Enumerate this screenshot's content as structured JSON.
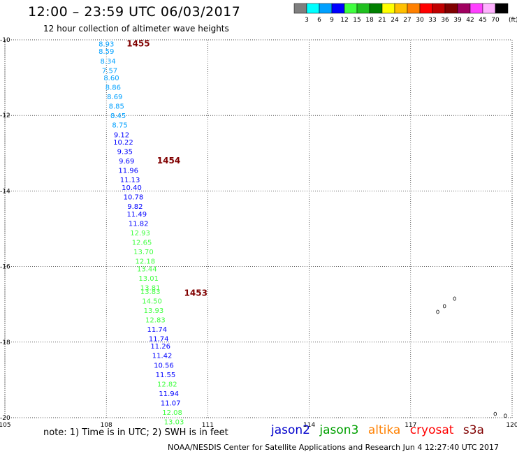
{
  "header": {
    "title": "12:00 – 23:59 UTC 06/03/2017",
    "subtitle": "12 hour collection of altimeter wave heights"
  },
  "colorbar": {
    "unit": "(ft)",
    "labels": [
      "3",
      "6",
      "9",
      "12",
      "15",
      "18",
      "21",
      "24",
      "27",
      "30",
      "33",
      "36",
      "39",
      "42",
      "45",
      "70"
    ],
    "colors": [
      "#7f7f7f",
      "#00ffff",
      "#00a0ff",
      "#0000ff",
      "#40ff40",
      "#20c020",
      "#008000",
      "#ffff00",
      "#ffc000",
      "#ff8000",
      "#ff0000",
      "#c00000",
      "#800000",
      "#a00060",
      "#ff40ff",
      "#ffb0ff",
      "#000000"
    ]
  },
  "footer": {
    "note": "note: 1) Time is in UTC; 2) SWH is in feet",
    "credit": "NOAA/NESDIS Center for Satellite Applications and Research    Jun  4 12:27:40 UTC 2017",
    "satellites": [
      {
        "name": "jason2",
        "color": "#0000cc"
      },
      {
        "name": "jason3",
        "color": "#00a000"
      },
      {
        "name": "altika",
        "color": "#ff8000"
      },
      {
        "name": "cryosat",
        "color": "#ff0000"
      },
      {
        "name": "s3a",
        "color": "#800000"
      }
    ]
  },
  "chart_data": {
    "type": "scatter",
    "x_axis": {
      "range": [
        105,
        120
      ],
      "ticks": [
        "105",
        "108",
        "111",
        "114",
        "117",
        "120"
      ]
    },
    "y_axis": {
      "range": [
        -20,
        -10
      ],
      "ticks": [
        "-10",
        "-12",
        "-14",
        "-16",
        "-18",
        "-20"
      ]
    },
    "grid": true,
    "time_labels": [
      {
        "text": "1455",
        "x": 108.6,
        "y": -10.1
      },
      {
        "text": "1454",
        "x": 109.5,
        "y": -13.2
      },
      {
        "text": "1453",
        "x": 110.3,
        "y": -16.7
      }
    ],
    "points": [
      {
        "x": 108.0,
        "y": -10.1,
        "v": "8.93",
        "color": "#00a0ff"
      },
      {
        "x": 108.0,
        "y": -10.3,
        "v": "8.59",
        "color": "#00a0ff"
      },
      {
        "x": 108.05,
        "y": -10.55,
        "v": "8.34",
        "color": "#00a0ff"
      },
      {
        "x": 108.1,
        "y": -10.8,
        "v": "7.57",
        "color": "#00a0ff"
      },
      {
        "x": 108.15,
        "y": -11.0,
        "v": "8.60",
        "color": "#00a0ff"
      },
      {
        "x": 108.2,
        "y": -11.25,
        "v": "8.86",
        "color": "#00a0ff"
      },
      {
        "x": 108.25,
        "y": -11.5,
        "v": "8.69",
        "color": "#00a0ff"
      },
      {
        "x": 108.3,
        "y": -11.75,
        "v": "8.85",
        "color": "#00a0ff"
      },
      {
        "x": 108.35,
        "y": -12.0,
        "v": "8.45",
        "color": "#00a0ff"
      },
      {
        "x": 108.4,
        "y": -12.25,
        "v": "8.75",
        "color": "#00a0ff"
      },
      {
        "x": 108.45,
        "y": -12.5,
        "v": "9.12",
        "color": "#0000ff"
      },
      {
        "x": 108.5,
        "y": -12.7,
        "v": "10.22",
        "color": "#0000ff"
      },
      {
        "x": 108.55,
        "y": -12.95,
        "v": "9.35",
        "color": "#0000ff"
      },
      {
        "x": 108.6,
        "y": -13.2,
        "v": "9.69",
        "color": "#0000ff"
      },
      {
        "x": 108.65,
        "y": -13.45,
        "v": "11.96",
        "color": "#0000ff"
      },
      {
        "x": 108.7,
        "y": -13.7,
        "v": "11.13",
        "color": "#0000ff"
      },
      {
        "x": 108.75,
        "y": -13.9,
        "v": "10.40",
        "color": "#0000ff"
      },
      {
        "x": 108.8,
        "y": -14.15,
        "v": "10.78",
        "color": "#0000ff"
      },
      {
        "x": 108.85,
        "y": -14.4,
        "v": "9.82",
        "color": "#0000ff"
      },
      {
        "x": 108.9,
        "y": -14.6,
        "v": "11.49",
        "color": "#0000ff"
      },
      {
        "x": 108.95,
        "y": -14.85,
        "v": "11.82",
        "color": "#0000ff"
      },
      {
        "x": 109.0,
        "y": -15.1,
        "v": "12.93",
        "color": "#40ff40"
      },
      {
        "x": 109.05,
        "y": -15.35,
        "v": "12.65",
        "color": "#40ff40"
      },
      {
        "x": 109.1,
        "y": -15.6,
        "v": "13.70",
        "color": "#40ff40"
      },
      {
        "x": 109.15,
        "y": -15.85,
        "v": "12.18",
        "color": "#40ff40"
      },
      {
        "x": 109.2,
        "y": -16.05,
        "v": "13.44",
        "color": "#40ff40"
      },
      {
        "x": 109.25,
        "y": -16.3,
        "v": "13.01",
        "color": "#40ff40"
      },
      {
        "x": 109.3,
        "y": -16.55,
        "v": "13.81",
        "color": "#40ff40"
      },
      {
        "x": 109.3,
        "y": -16.65,
        "v": "13.83",
        "color": "#40ff40"
      },
      {
        "x": 109.35,
        "y": -16.9,
        "v": "14.50",
        "color": "#40ff40"
      },
      {
        "x": 109.4,
        "y": -17.15,
        "v": "13.93",
        "color": "#40ff40"
      },
      {
        "x": 109.45,
        "y": -17.4,
        "v": "12.83",
        "color": "#40ff40"
      },
      {
        "x": 109.5,
        "y": -17.65,
        "v": "11.74",
        "color": "#0000ff"
      },
      {
        "x": 109.55,
        "y": -17.9,
        "v": "11.74",
        "color": "#0000ff"
      },
      {
        "x": 109.6,
        "y": -18.1,
        "v": "11.26",
        "color": "#0000ff"
      },
      {
        "x": 109.65,
        "y": -18.35,
        "v": "11.42",
        "color": "#0000ff"
      },
      {
        "x": 109.7,
        "y": -18.6,
        "v": "10.56",
        "color": "#0000ff"
      },
      {
        "x": 109.75,
        "y": -18.85,
        "v": "11.55",
        "color": "#0000ff"
      },
      {
        "x": 109.8,
        "y": -19.1,
        "v": "12.82",
        "color": "#40ff40"
      },
      {
        "x": 109.85,
        "y": -19.35,
        "v": "11.94",
        "color": "#0000ff"
      },
      {
        "x": 109.9,
        "y": -19.6,
        "v": "11.07",
        "color": "#0000ff"
      },
      {
        "x": 109.95,
        "y": -19.85,
        "v": "12.08",
        "color": "#40ff40"
      },
      {
        "x": 110.0,
        "y": -20.1,
        "v": "13.03",
        "color": "#40ff40"
      }
    ],
    "islands": [
      {
        "x": 117.8,
        "y": -17.2
      },
      {
        "x": 118.0,
        "y": -17.05
      },
      {
        "x": 118.3,
        "y": -16.85
      },
      {
        "x": 119.5,
        "y": -19.9
      },
      {
        "x": 119.8,
        "y": -19.95
      }
    ]
  }
}
